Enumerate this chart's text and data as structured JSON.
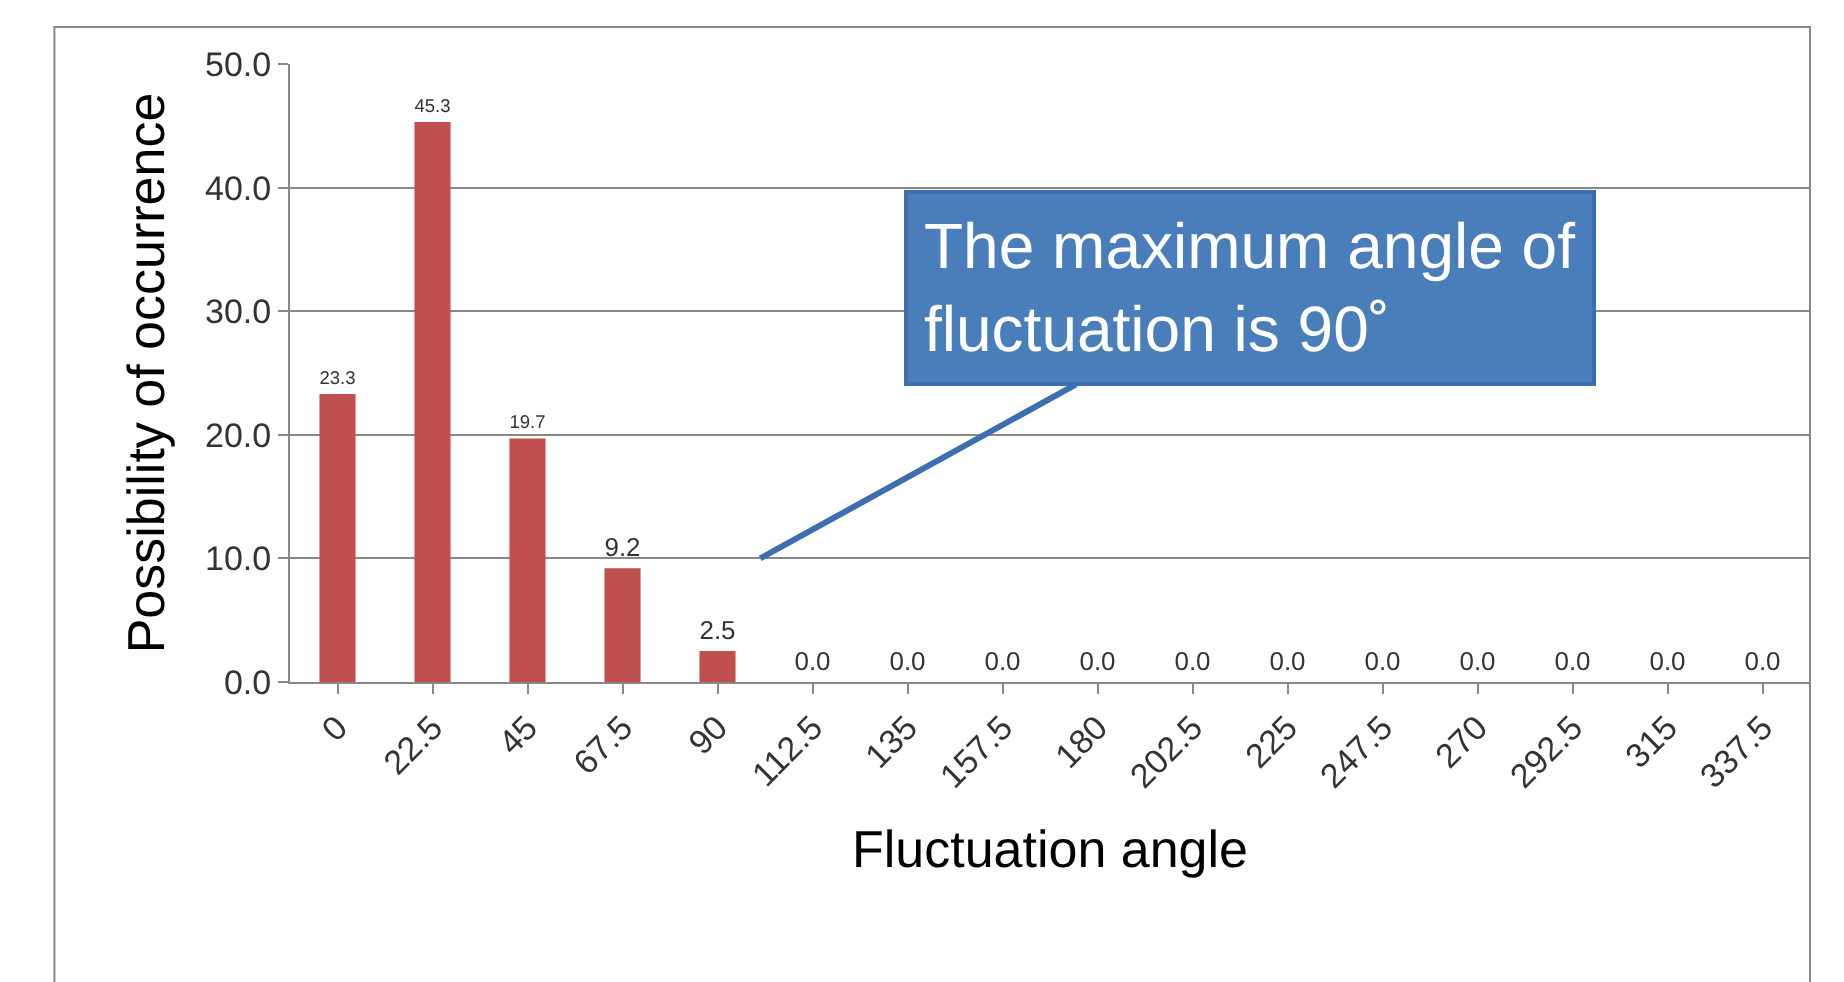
{
  "chart_data": {
    "type": "bar",
    "xlabel": "Fluctuation angle",
    "ylabel": "Possibility of occurrence",
    "categories": [
      "0",
      "22.5",
      "45",
      "67.5",
      "90",
      "112.5",
      "135",
      "157.5",
      "180",
      "202.5",
      "225",
      "247.5",
      "270",
      "292.5",
      "315",
      "337.5"
    ],
    "values": [
      23.3,
      45.3,
      19.7,
      9.2,
      2.5,
      0,
      0,
      0,
      0,
      0,
      0,
      0,
      0,
      0,
      0,
      0
    ],
    "value_labels": [
      "23.3",
      "45.3",
      "19.7",
      "9.2",
      "2.5",
      "0.0",
      "0.0",
      "0.0",
      "0.0",
      "0.0",
      "0.0",
      "0.0",
      "0.0",
      "0.0",
      "0.0",
      "0.0"
    ],
    "color": "#c0504d",
    "ylim": [
      0,
      50
    ],
    "yticks": [
      {
        "value": 0,
        "label": "0.0"
      },
      {
        "value": 10,
        "label": "10.0"
      },
      {
        "value": 20,
        "label": "20.0"
      },
      {
        "value": 30,
        "label": "30.0"
      },
      {
        "value": 40,
        "label": "40.0"
      },
      {
        "value": 50,
        "label": "50.0"
      }
    ],
    "grid": "y",
    "annotations": [
      "The maximum angle of fluctuation is 90˚"
    ]
  }
}
